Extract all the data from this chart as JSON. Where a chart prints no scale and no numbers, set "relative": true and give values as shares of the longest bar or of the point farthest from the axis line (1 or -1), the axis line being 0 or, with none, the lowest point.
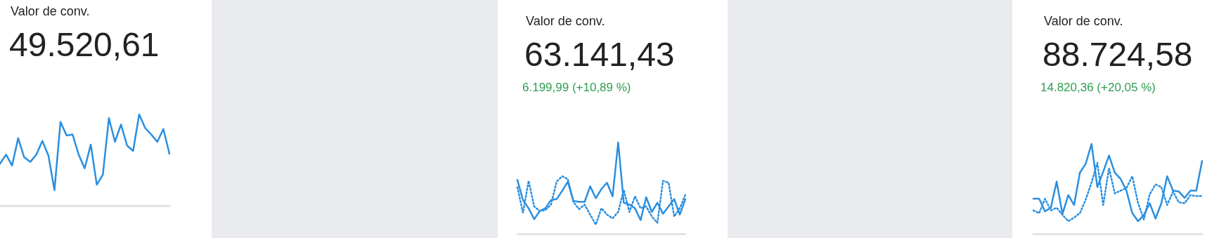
{
  "chart_data": [
    {
      "type": "line",
      "title": "Valor de conv.",
      "subtitle": "49.520,61",
      "relative": true,
      "tick_labels": false,
      "grid": false,
      "categories": [
        null,
        null,
        null,
        null,
        null,
        null,
        null,
        null,
        null,
        null,
        null,
        null,
        null,
        null,
        null,
        null,
        null,
        null,
        null,
        null,
        null,
        null,
        null,
        null,
        null,
        null,
        null,
        null,
        null
      ],
      "series": [
        {
          "color": "#2a8fe0",
          "line_style": "solid",
          "values": [
            0.46,
            0.56,
            0.44,
            0.74,
            0.53,
            0.48,
            0.56,
            0.71,
            0.55,
            0.17,
            0.92,
            0.77,
            0.78,
            0.56,
            0.41,
            0.67,
            0.23,
            0.34,
            0.96,
            0.7,
            0.89,
            0.66,
            0.6,
            1,
            0.85,
            0.78,
            0.7,
            0.84,
            0.57
          ]
        }
      ]
    },
    {
      "type": "line",
      "title": "Valor de conv.",
      "subtitle": "63.141,43",
      "annotations": [
        "6.199,99 (+10,89 %)"
      ],
      "relative": true,
      "tick_labels": false,
      "grid": false,
      "categories": [
        null,
        null,
        null,
        null,
        null,
        null,
        null,
        null,
        null,
        null,
        null,
        null,
        null,
        null,
        null,
        null,
        null,
        null,
        null,
        null,
        null,
        null,
        null,
        null,
        null,
        null,
        null,
        null,
        null,
        null,
        null
      ],
      "series": [
        {
          "color": "#2a8fe0",
          "line_style": "solid",
          "values": [
            0.59,
            0.37,
            0.28,
            0.16,
            0.25,
            0.28,
            0.37,
            0.38,
            0.47,
            0.57,
            0.36,
            0.35,
            0.35,
            0.52,
            0.39,
            0.49,
            0.56,
            0.41,
            1,
            0.34,
            0.32,
            0.28,
            0.15,
            0.4,
            0.24,
            0.34,
            0.22,
            0.3,
            0.38,
            0.21,
            0.38
          ]
        },
        {
          "color": "#2a8fe0",
          "line_style": "dotted",
          "values": [
            0.51,
            0.23,
            0.58,
            0.3,
            0.25,
            0.26,
            0.32,
            0.57,
            0.63,
            0.6,
            0.35,
            0.27,
            0.32,
            0.21,
            0.1,
            0.28,
            0.21,
            0.17,
            0.24,
            0.48,
            0.24,
            0.41,
            0.28,
            0.3,
            0.19,
            0.12,
            0.58,
            0.56,
            0.19,
            0.28,
            0.43
          ]
        }
      ]
    },
    {
      "type": "line",
      "title": "Valor de conv.",
      "subtitle": "88.724,58",
      "annotations": [
        "14.820,36 (+20,05 %)"
      ],
      "relative": true,
      "tick_labels": false,
      "grid": false,
      "categories": [
        null,
        null,
        null,
        null,
        null,
        null,
        null,
        null,
        null,
        null,
        null,
        null,
        null,
        null,
        null,
        null,
        null,
        null,
        null,
        null,
        null,
        null,
        null,
        null,
        null,
        null,
        null,
        null,
        null,
        null
      ],
      "series": [
        {
          "color": "#2a8fe0",
          "line_style": "solid",
          "values": [
            0.39,
            0.39,
            0.25,
            0.29,
            0.58,
            0.22,
            0.43,
            0.32,
            0.68,
            0.78,
            1,
            0.52,
            0.69,
            0.87,
            0.68,
            0.61,
            0.48,
            0.23,
            0.14,
            0.21,
            0.34,
            0.17,
            0.34,
            0.64,
            0.48,
            0.47,
            0.4,
            0.48,
            0.48,
            0.81
          ]
        },
        {
          "color": "#2a8fe0",
          "line_style": "dotted",
          "values": [
            0.26,
            0.23,
            0.39,
            0.26,
            0.29,
            0.21,
            0.14,
            0.18,
            0.23,
            0.38,
            0.57,
            0.79,
            0.32,
            0.73,
            0.45,
            0.48,
            0.51,
            0.64,
            0.34,
            0.16,
            0.44,
            0.55,
            0.52,
            0.32,
            0.47,
            0.35,
            0.34,
            0.43,
            0.42,
            0.42
          ]
        }
      ]
    }
  ]
}
